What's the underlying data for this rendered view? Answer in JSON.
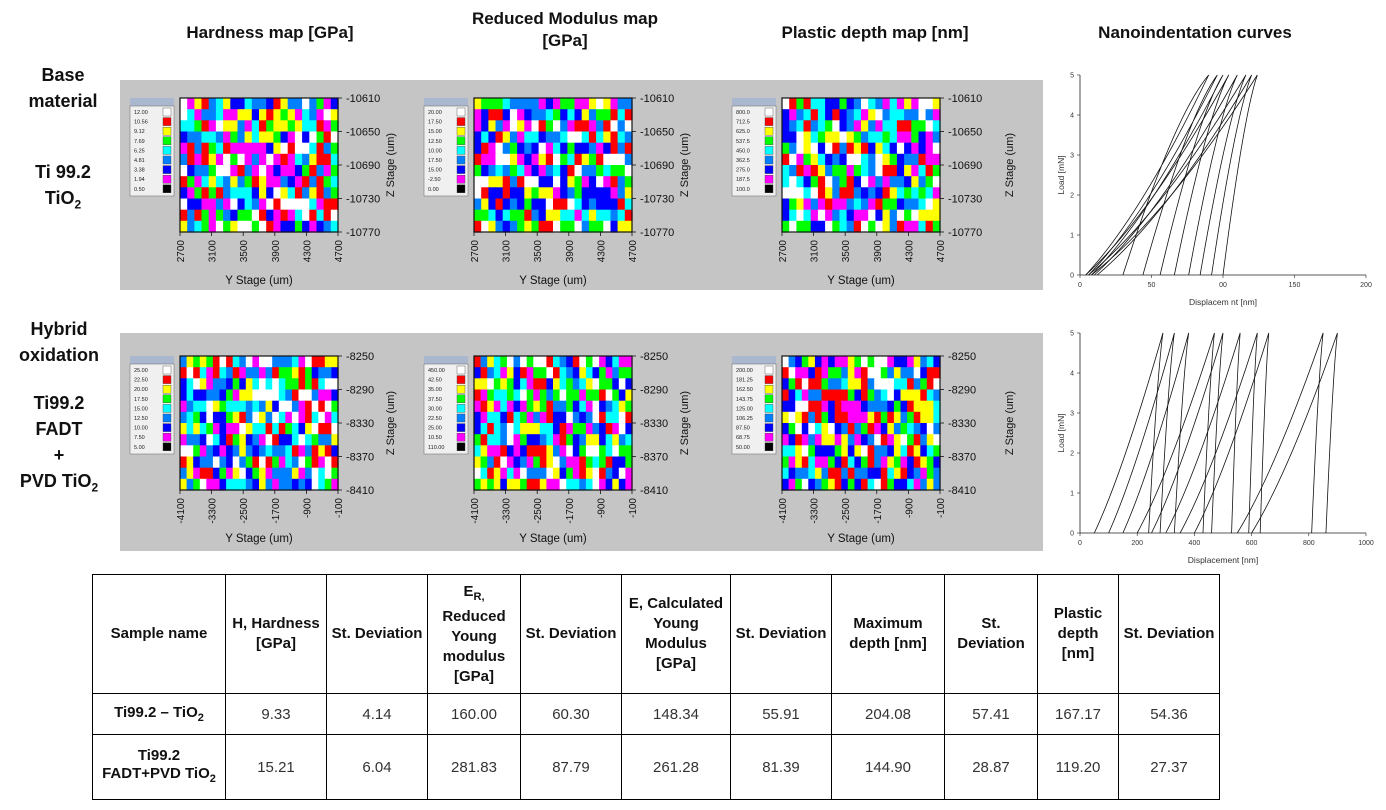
{
  "column_headers": {
    "hardness": "Hardness map [GPa]",
    "modulus_line1": "Reduced Modulus map",
    "modulus_line2": "[GPa]",
    "plastic": "Plastic depth map [nm]",
    "curves": "Nanoindentation curves"
  },
  "row_labels": {
    "base_l1": "Base",
    "base_l2": "material",
    "base_l3": "Ti 99.2",
    "base_l4_main": "TiO",
    "base_l4_sub": "2",
    "hybrid_l1": "Hybrid",
    "hybrid_l2": "oxidation",
    "hybrid_l3": "Ti99.2",
    "hybrid_l4": "FADT",
    "hybrid_l5": "+",
    "hybrid_l6_main": "PVD TiO",
    "hybrid_l6_sub": "2"
  },
  "maps": {
    "y_axis_title": "Y Stage (um)",
    "z_axis_title": "Z Stage (um)",
    "row1": {
      "z_ticks": [
        "-10610",
        "-10650",
        "-10690",
        "-10730",
        "-10770"
      ],
      "y_ticks": [
        "2700",
        "3100",
        "3500",
        "3900",
        "4300",
        "4700"
      ],
      "hardness_legend": [
        "12.00",
        "10.56",
        "9.12",
        "7.69",
        "6.25",
        "4.81",
        "3.38",
        "1.94",
        "0.50"
      ],
      "modulus_legend": [
        "20.00",
        "17.50",
        "15.00",
        "12.50",
        "10.00",
        "17.50",
        "15.00",
        "-2.50",
        "0.00"
      ],
      "plastic_legend": [
        "800.0",
        "712.5",
        "625.0",
        "537.5",
        "450.0",
        "362.5",
        "275.0",
        "187.5",
        "100.0"
      ]
    },
    "row2": {
      "z_ticks": [
        "-8250",
        "-8290",
        "-8330",
        "-8370",
        "-8410"
      ],
      "y_ticks": [
        "-4100",
        "-3300",
        "-2500",
        "-1700",
        "-900",
        "-100"
      ],
      "hardness_legend": [
        "25.00",
        "22.50",
        "20.00",
        "17.50",
        "15.00",
        "12.50",
        "10.00",
        "7.50",
        "5.00"
      ],
      "modulus_legend": [
        "450.00",
        "42.50",
        "35.00",
        "37.50",
        "30.00",
        "22.50",
        "25.00",
        "10.50",
        "110.00"
      ],
      "plastic_legend": [
        "200.00",
        "181.25",
        "162.50",
        "143.75",
        "125.00",
        "106.25",
        "87.50",
        "68.75",
        "50.00"
      ]
    },
    "palette": [
      "#ffffff",
      "#ff0000",
      "#ffff00",
      "#00ff00",
      "#00ffff",
      "#0080ff",
      "#0000ff",
      "#ff00ff",
      "#000000"
    ]
  },
  "curves": {
    "ylabel": "Load [mN]",
    "top": {
      "xlabel": "Displacem nt [nm]",
      "x_ticks": [
        "0",
        "50",
        "00",
        "150",
        "200"
      ],
      "y_ticks": [
        "0",
        "1",
        "2",
        "3",
        "4",
        "5"
      ]
    },
    "bottom": {
      "xlabel": "Displacement [nm]",
      "x_ticks": [
        "0",
        "200",
        "400",
        "600",
        "800",
        "1000"
      ],
      "y_ticks": [
        "0",
        "1",
        "2",
        "3",
        "4",
        "5"
      ]
    }
  },
  "table": {
    "headers": {
      "sample": "Sample name",
      "h": "H, Hardness [GPa]",
      "sd1": "St. Deviation",
      "er_main": "E",
      "er_sub": "R,",
      "er_rest": "Reduced Young modulus [GPa]",
      "sd2": "St. Deviation",
      "e": "E, Calculated Young Modulus [GPa]",
      "sd3": "St. Deviation",
      "maxdepth": "Maximum depth [nm]",
      "sd4": "St. Deviation",
      "plastic": "Plastic depth [nm]",
      "sd5": "St. Deviation"
    },
    "rows": [
      {
        "name_main": "Ti99.2 – TiO",
        "name_sub": "2",
        "name_tail": "",
        "values": [
          "9.33",
          "4.14",
          "160.00",
          "60.30",
          "148.34",
          "55.91",
          "204.08",
          "57.41",
          "167.17",
          "54.36"
        ]
      },
      {
        "name_main": "Ti99.2 FADT+PVD TiO",
        "name_sub": "2",
        "name_tail": "",
        "values": [
          "15.21",
          "6.04",
          "281.83",
          "87.79",
          "261.28",
          "81.39",
          "144.90",
          "28.87",
          "119.20",
          "27.37"
        ]
      }
    ]
  }
}
